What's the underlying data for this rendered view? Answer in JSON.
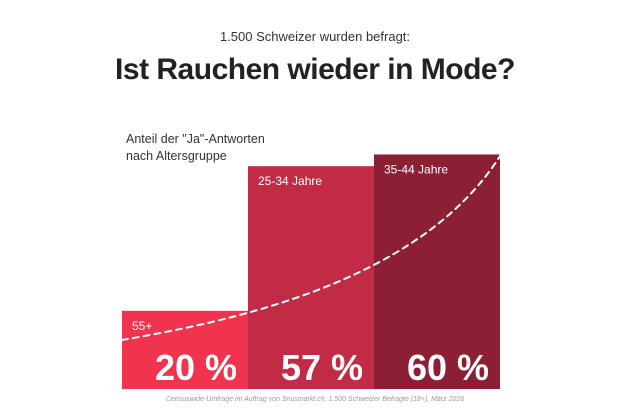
{
  "header": {
    "kicker": "1.500 Schweizer wurden befragt:",
    "title": "Ist Rauchen wieder in Mode?",
    "subtitle": "Anteil der \"Ja\"-Antworten\nnach Altersgruppe"
  },
  "footer": {
    "source": "Censuswide-Umfrage im Auftrag von Snusmarkt.ch, 1.500 Schweizer Befragte (18+), März 2026"
  },
  "colors": {
    "bar_55": "#f0334f",
    "bar_25_34": "#c22b45",
    "bar_35_44": "#8c1f34",
    "trend_line": "#ffffff"
  },
  "chart_data": {
    "type": "bar",
    "title": "Ist Rauchen wieder in Mode?",
    "subtitle": "Anteil der \"Ja\"-Antworten nach Altersgruppe",
    "categories": [
      "55+",
      "25-34 Jahre",
      "35-44 Jahre"
    ],
    "values": [
      20,
      57,
      60
    ],
    "value_labels": [
      "20 %",
      "57 %",
      "60 %"
    ],
    "unit": "%",
    "ylim": [
      0,
      66
    ],
    "grid": false,
    "legend": "none",
    "trend_line": "dashed, rising"
  }
}
